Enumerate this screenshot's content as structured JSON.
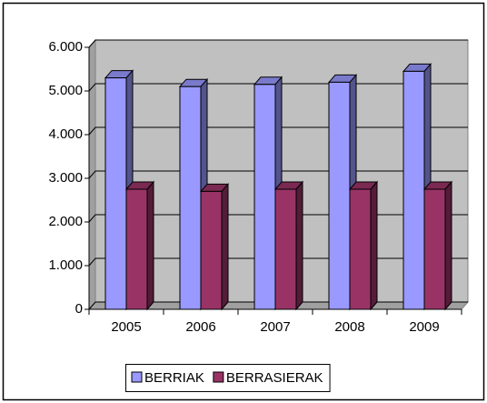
{
  "chart_data": {
    "type": "bar3d",
    "categories": [
      "2005",
      "2006",
      "2007",
      "2008",
      "2009"
    ],
    "series": [
      {
        "name": "BERRIAK",
        "color": "#9999ff",
        "values": [
          5300,
          5100,
          5150,
          5200,
          5450
        ]
      },
      {
        "name": "BERRASIERAK",
        "color": "#993366",
        "values": [
          2750,
          2700,
          2750,
          2750,
          2750
        ]
      }
    ],
    "ylim": [
      0,
      6000
    ],
    "yticks": [
      0,
      {
        "value": 1000,
        "label": "1.000"
      },
      {
        "value": 2000,
        "label": "2.000"
      },
      {
        "value": 3000,
        "label": "3.000"
      },
      {
        "value": 4000,
        "label": "4.000"
      },
      {
        "value": 5000,
        "label": "5.000"
      },
      {
        "value": 6000,
        "label": "6.000"
      }
    ],
    "grid": true,
    "legend": "bottom"
  }
}
